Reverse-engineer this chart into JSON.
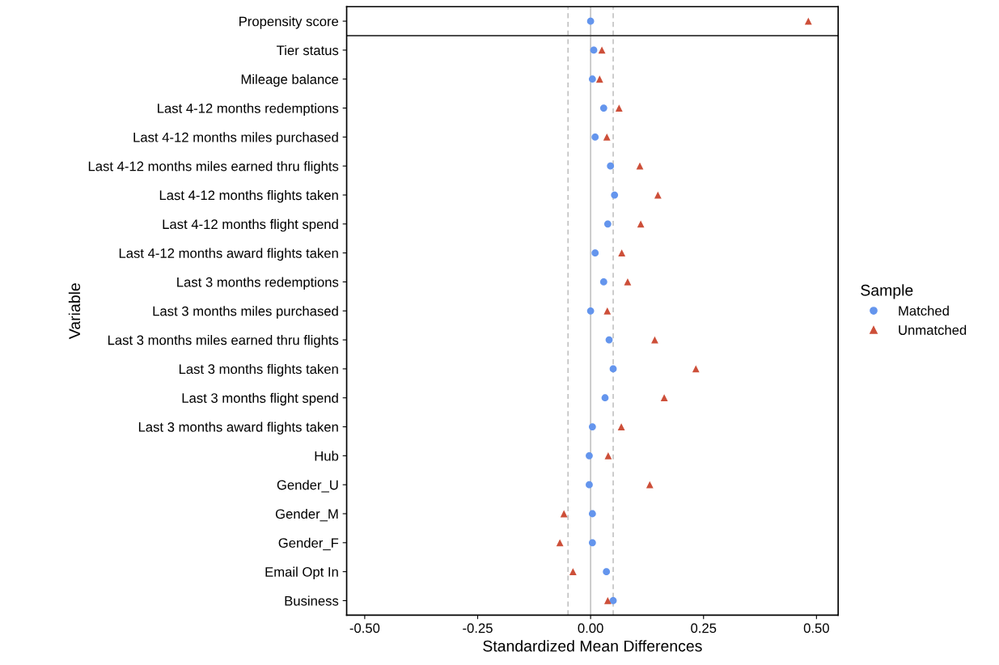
{
  "chart_data": {
    "type": "scatter",
    "orientation": "horizontal",
    "xlabel": "Standardized Mean Differences",
    "ylabel": "Variable",
    "legend_title": "Sample",
    "legend": "right",
    "grid": false,
    "categories": [
      "Propensity score",
      "Tier status",
      "Mileage balance",
      "Last 4-12 months redemptions",
      "Last 4-12 months miles purchased",
      "Last 4-12 months miles earned thru flights",
      "Last 4-12 months flights taken",
      "Last 4-12 months flight spend",
      "Last 4-12 months award flights taken",
      "Last 3 months redemptions",
      "Last 3 months miles purchased",
      "Last 3 months miles earned thru flights",
      "Last 3 months flights taken",
      "Last 3 months flight spend",
      "Last 3 months award flights taken",
      "Hub",
      "Gender_U",
      "Gender_M",
      "Gender_F",
      "Email Opt In",
      "Business"
    ],
    "xlim": [
      -0.54,
      0.548
    ],
    "xticks": [
      {
        "value": -0.5,
        "label": "-0.50"
      },
      {
        "value": -0.25,
        "label": "-0.25"
      },
      {
        "value": 0,
        "label": "0.00"
      },
      {
        "value": 0.25,
        "label": "0.25"
      },
      {
        "value": 0.5,
        "label": "0.50"
      }
    ],
    "series": [
      {
        "name": "Matched",
        "color": "#6495ed",
        "marker": "circle",
        "values": [
          0.0,
          0.007,
          0.004,
          0.029,
          0.01,
          0.044,
          0.053,
          0.038,
          0.01,
          0.029,
          0.0,
          0.041,
          0.05,
          0.032,
          0.004,
          -0.003,
          -0.003,
          0.004,
          0.004,
          0.035,
          0.05
        ]
      },
      {
        "name": "Unmatched",
        "color": "#cd4f39",
        "marker": "triangle",
        "values": [
          0.482,
          0.025,
          0.02,
          0.063,
          0.036,
          0.109,
          0.149,
          0.111,
          0.069,
          0.082,
          0.037,
          0.142,
          0.233,
          0.163,
          0.068,
          0.039,
          0.131,
          -0.059,
          -0.068,
          -0.039,
          0.038
        ]
      }
    ],
    "ref_lines": [
      {
        "axis": "x",
        "value": 0,
        "color": "#bebebe",
        "line_style": "solid"
      },
      {
        "axis": "x",
        "value": -0.05,
        "color": "#bebebe",
        "line_style": "dashed"
      },
      {
        "axis": "x",
        "value": 0.05,
        "color": "#bebebe",
        "line_style": "dashed"
      },
      {
        "axis": "y",
        "value": "Propensity score",
        "color": "#333333",
        "line_style": "solid"
      }
    ]
  }
}
